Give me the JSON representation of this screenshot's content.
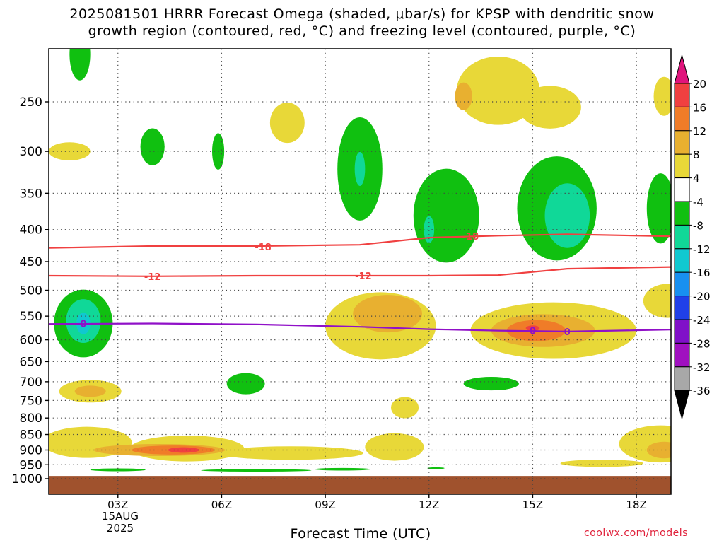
{
  "title": {
    "line1": "2025081501 HRRR Forecast Omega (shaded, μbar/s) for KPSP with dendritic snow",
    "line2": "growth region (contoured, red, °C) and freezing level (contoured, purple, °C)"
  },
  "credit": "coolwx.com/models",
  "date_label": {
    "day": "15AUG",
    "year": "2025"
  },
  "chart_data": {
    "type": "heatmap",
    "title": "2025081501 HRRR Forecast Omega (shaded, μbar/s) for KPSP with dendritic snow growth region (contoured, red, °C) and freezing level (contoured, purple, °C)",
    "xlabel": "Forecast Time (UTC)",
    "ylabel": "",
    "x_ticks": [
      {
        "label": "03Z",
        "hour": 3
      },
      {
        "label": "06Z",
        "hour": 6
      },
      {
        "label": "09Z",
        "hour": 9
      },
      {
        "label": "12Z",
        "hour": 12
      },
      {
        "label": "15Z",
        "hour": 15
      },
      {
        "label": "18Z",
        "hour": 18
      }
    ],
    "xlim": [
      1,
      19
    ],
    "y_ticks": [
      250,
      300,
      350,
      400,
      450,
      500,
      550,
      600,
      650,
      700,
      750,
      800,
      850,
      900,
      950,
      1000
    ],
    "ylim": [
      1000,
      200
    ],
    "y_scale": "log",
    "grid": true,
    "colorbar": {
      "labels": [
        "20",
        "16",
        "12",
        "8",
        "4",
        "-4",
        "-8",
        "-12",
        "-16",
        "-20",
        "-24",
        "-28",
        "-32",
        "-36"
      ],
      "colors": [
        "#e0147c",
        "#f04040",
        "#f07c28",
        "#e8b030",
        "#e8d838",
        "#ffffff",
        "#10c010",
        "#10d898",
        "#10c8d0",
        "#1890f0",
        "#2040e8",
        "#8010c8",
        "#a010c0",
        "#a8a8a8",
        "#000000"
      ]
    },
    "shading": {
      "bands": [
        {
          "name": "4 to 8",
          "color": "#e8d838"
        },
        {
          "name": "8 to 12",
          "color": "#e8b030"
        },
        {
          "name": "12 to 16",
          "color": "#f07c28"
        },
        {
          "name": "16 to 20",
          "color": "#f04040"
        },
        {
          "name": "-4 to -8",
          "color": "#10c010"
        },
        {
          "name": "-8 to -12",
          "color": "#10d898"
        },
        {
          "name": "-12 to -16",
          "color": "#10c8d0"
        }
      ],
      "regions": [
        {
          "band": "4 to 8",
          "hour": 2.1,
          "p": 875,
          "dh": 2.6,
          "dp": 100
        },
        {
          "band": "4 to 8",
          "hour": 5.0,
          "p": 895,
          "dh": 3.3,
          "dp": 85
        },
        {
          "band": "4 to 8",
          "hour": 8.0,
          "p": 910,
          "dh": 4.2,
          "dp": 45
        },
        {
          "band": "4 to 8",
          "hour": 11.0,
          "p": 890,
          "dh": 1.7,
          "dp": 90
        },
        {
          "band": "8 to 12",
          "hour": 4.2,
          "p": 900,
          "dh": 3.8,
          "dp": 40
        },
        {
          "band": "12 to 16",
          "hour": 4.6,
          "p": 900,
          "dh": 2.4,
          "dp": 30
        },
        {
          "band": "16 to 20",
          "hour": 4.9,
          "p": 900,
          "dh": 0.9,
          "dp": 18
        },
        {
          "band": "4 to 8",
          "hour": 2.2,
          "p": 725,
          "dh": 1.8,
          "dp": 60
        },
        {
          "band": "8 to 12",
          "hour": 2.2,
          "p": 725,
          "dh": 0.9,
          "dp": 30
        },
        {
          "band": "4 to 8",
          "hour": 10.6,
          "p": 570,
          "dh": 3.2,
          "dp": 140
        },
        {
          "band": "8 to 12",
          "hour": 10.8,
          "p": 545,
          "dh": 2.0,
          "dp": 75
        },
        {
          "band": "4 to 8",
          "hour": 15.6,
          "p": 580,
          "dh": 4.8,
          "dp": 120
        },
        {
          "band": "8 to 12",
          "hour": 15.3,
          "p": 580,
          "dh": 3.0,
          "dp": 70
        },
        {
          "band": "12 to 16",
          "hour": 15.1,
          "p": 580,
          "dh": 1.7,
          "dp": 45
        },
        {
          "band": "16 to 20",
          "hour": 15.0,
          "p": 575,
          "dh": 0.4,
          "dp": 12
        },
        {
          "band": "4 to 8",
          "hour": 18.9,
          "p": 520,
          "dh": 1.4,
          "dp": 65
        },
        {
          "band": "4 to 8",
          "hour": 18.7,
          "p": 880,
          "dh": 2.4,
          "dp": 120
        },
        {
          "band": "8 to 12",
          "hour": 18.8,
          "p": 900,
          "dh": 1.0,
          "dp": 55
        },
        {
          "band": "4 to 8",
          "hour": 14.0,
          "p": 240,
          "dh": 2.4,
          "dp": 60
        },
        {
          "band": "4 to 8",
          "hour": 15.5,
          "p": 255,
          "dh": 1.8,
          "dp": 40
        },
        {
          "band": "8 to 12",
          "hour": 13.0,
          "p": 245,
          "dh": 0.5,
          "dp": 25
        },
        {
          "band": "4 to 8",
          "hour": 7.9,
          "p": 270,
          "dh": 1.0,
          "dp": 40
        },
        {
          "band": "4 to 8",
          "hour": 1.6,
          "p": 300,
          "dh": 1.2,
          "dp": 20
        },
        {
          "band": "4 to 8",
          "hour": 18.8,
          "p": 245,
          "dh": 0.6,
          "dp": 35
        },
        {
          "band": "4 to 8",
          "hour": 11.3,
          "p": 770,
          "dh": 0.8,
          "dp": 60
        },
        {
          "band": "4 to 8",
          "hour": 17.0,
          "p": 945,
          "dh": 2.4,
          "dp": 25
        },
        {
          "band": "-4 to -8",
          "hour": 2.0,
          "p": 565,
          "dh": 1.7,
          "dp": 140
        },
        {
          "band": "-8 to -12",
          "hour": 2.0,
          "p": 560,
          "dh": 1.0,
          "dp": 90
        },
        {
          "band": "-12 to -16",
          "hour": 2.0,
          "p": 565,
          "dh": 0.4,
          "dp": 45
        },
        {
          "band": "-4 to -8",
          "hour": 10.0,
          "p": 320,
          "dh": 1.3,
          "dp": 120
        },
        {
          "band": "-8 to -12",
          "hour": 10.0,
          "p": 320,
          "dh": 0.3,
          "dp": 40
        },
        {
          "band": "-4 to -8",
          "hour": 12.5,
          "p": 380,
          "dh": 1.9,
          "dp": 130
        },
        {
          "band": "-8 to -12",
          "hour": 12.0,
          "p": 400,
          "dh": 0.3,
          "dp": 40
        },
        {
          "band": "-4 to -8",
          "hour": 15.7,
          "p": 370,
          "dh": 2.3,
          "dp": 140
        },
        {
          "band": "-8 to -12",
          "hour": 16.0,
          "p": 380,
          "dh": 1.3,
          "dp": 90
        },
        {
          "band": "-4 to -8",
          "hour": 18.7,
          "p": 370,
          "dh": 0.8,
          "dp": 95
        },
        {
          "band": "-4 to -8",
          "hour": 1.9,
          "p": 210,
          "dh": 0.6,
          "dp": 40
        },
        {
          "band": "-4 to -8",
          "hour": 4.0,
          "p": 295,
          "dh": 0.7,
          "dp": 40
        },
        {
          "band": "-4 to -8",
          "hour": 5.9,
          "p": 300,
          "dh": 0.35,
          "dp": 40
        },
        {
          "band": "-4 to -8",
          "hour": 6.7,
          "p": 705,
          "dh": 1.1,
          "dp": 55
        },
        {
          "band": "-4 to -8",
          "hour": 13.8,
          "p": 705,
          "dh": 1.6,
          "dp": 35
        },
        {
          "band": "-4 to -8",
          "hour": 3.0,
          "p": 968,
          "dh": 1.6,
          "dp": 10
        },
        {
          "band": "-4 to -8",
          "hour": 7.0,
          "p": 970,
          "dh": 3.2,
          "dp": 9
        },
        {
          "band": "-4 to -8",
          "hour": 9.5,
          "p": 966,
          "dh": 1.6,
          "dp": 9
        },
        {
          "band": "-4 to -8",
          "hour": 12.2,
          "p": 962,
          "dh": 0.5,
          "dp": 6
        }
      ]
    },
    "series": [
      {
        "name": "-18",
        "color": "#f04040",
        "hours": [
          1,
          4,
          7,
          10,
          12,
          14,
          16,
          19
        ],
        "pressure": [
          428,
          425,
          425,
          423,
          412,
          409,
          407,
          410
        ]
      },
      {
        "name": "-12",
        "color": "#f04040",
        "hours": [
          1,
          4,
          7,
          10,
          12,
          14,
          16,
          19
        ],
        "pressure": [
          474,
          475,
          474,
          474,
          474,
          473,
          462,
          459
        ]
      },
      {
        "name": "0",
        "color": "#9010c8",
        "hours": [
          1,
          4,
          7,
          10,
          12,
          14,
          16,
          19
        ],
        "pressure": [
          566,
          565,
          567,
          572,
          577,
          580,
          582,
          578
        ]
      }
    ],
    "contour_labels": [
      {
        "text": "-18",
        "hour": 7.2,
        "p": 426,
        "color": "#f04040"
      },
      {
        "text": "-18",
        "hour": 13.2,
        "p": 410,
        "color": "#f04040"
      },
      {
        "text": "-12",
        "hour": 4.0,
        "p": 475,
        "color": "#f04040"
      },
      {
        "text": "-12",
        "hour": 10.1,
        "p": 474,
        "color": "#f04040"
      },
      {
        "text": "0",
        "hour": 2.0,
        "p": 565,
        "color": "#9010c8"
      },
      {
        "text": "0",
        "hour": 15.0,
        "p": 580,
        "color": "#9010c8"
      },
      {
        "text": "0",
        "hour": 16.0,
        "p": 582,
        "color": "#9010c8"
      }
    ],
    "terrain": {
      "color": "#a0522d",
      "p_top": 990
    }
  }
}
